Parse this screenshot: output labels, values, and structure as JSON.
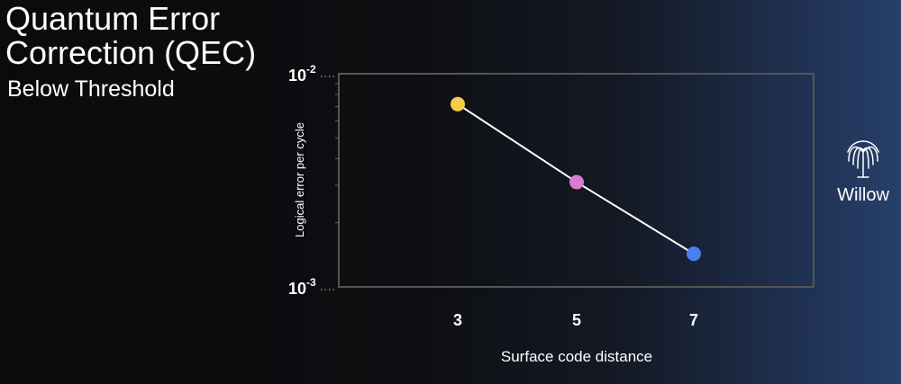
{
  "slide": {
    "title_line1": "Quantum Error",
    "title_line2": "Correction (QEC)",
    "subtitle": "Below Threshold"
  },
  "badge": {
    "icon": "willow-tree-icon",
    "label": "Willow"
  },
  "chart_data": {
    "type": "line",
    "xlabel": "Surface code distance",
    "ylabel": "Logical error per cycle",
    "yscale": "log",
    "ylim": [
      0.001,
      0.01
    ],
    "y_ticks": [
      {
        "value": 0.01,
        "base": "10",
        "exp": "-2"
      },
      {
        "value": 0.001,
        "base": "10",
        "exp": "-3"
      }
    ],
    "x_categories": [
      "3",
      "5",
      "7"
    ],
    "series": [
      {
        "points": [
          {
            "x": 3,
            "y": 0.0072,
            "color": "#f6cc47"
          },
          {
            "x": 5,
            "y": 0.0031,
            "color": "#d97ad3"
          },
          {
            "x": 7,
            "y": 0.00143,
            "color": "#4a7ef0"
          }
        ],
        "line_color": "#ffffff"
      }
    ],
    "frame_color": "#555555",
    "grid": false
  }
}
